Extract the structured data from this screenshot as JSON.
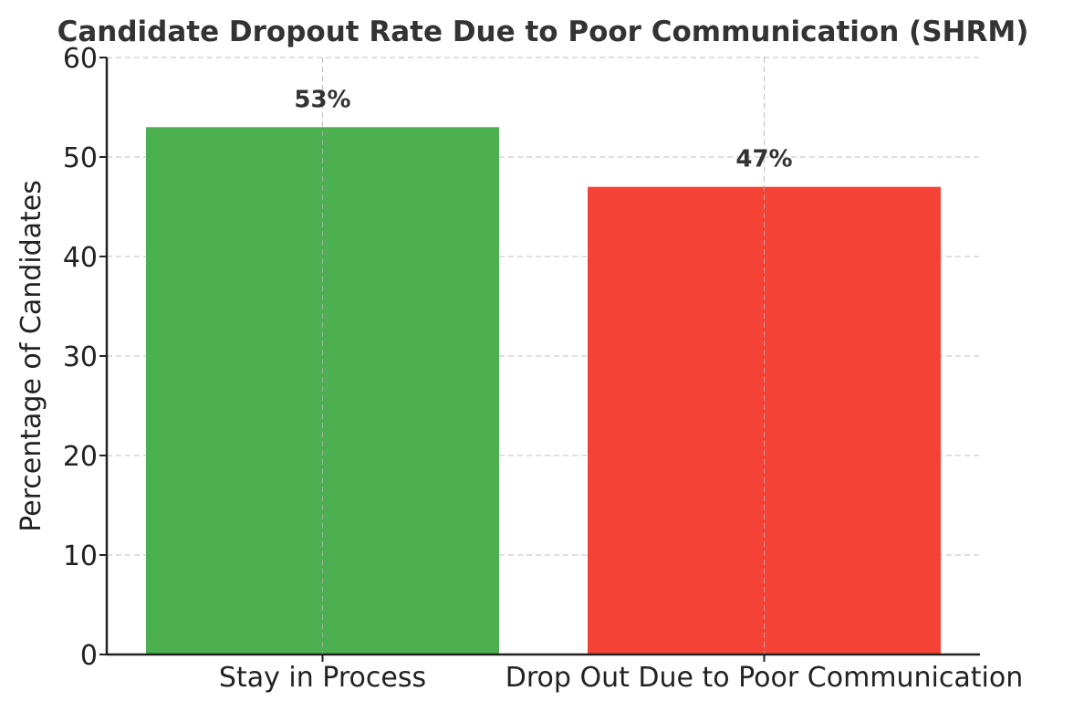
{
  "chart_data": {
    "type": "bar",
    "title": "Candidate Dropout Rate Due to Poor Communication (SHRM)",
    "xlabel": "",
    "ylabel": "Percentage of Candidates",
    "categories": [
      "Stay in Process",
      "Drop Out Due to Poor Communication"
    ],
    "values": [
      53,
      47
    ],
    "data_labels": [
      "53%",
      "47%"
    ],
    "colors": [
      "#4caf50",
      "#f44336"
    ],
    "ylim": [
      0,
      60
    ],
    "yticks": [
      0,
      10,
      20,
      30,
      40,
      50,
      60
    ],
    "grid": true,
    "legend": "none"
  }
}
